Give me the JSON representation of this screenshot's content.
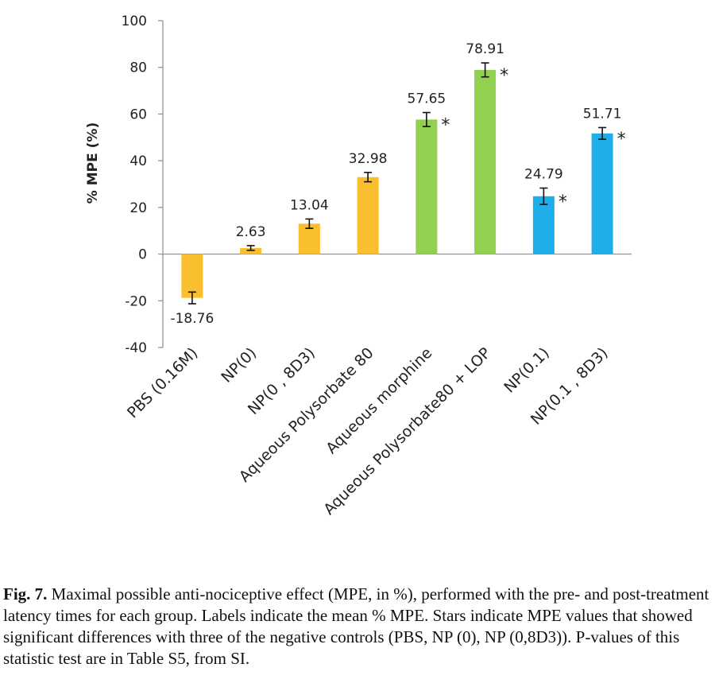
{
  "chart_data": {
    "type": "bar",
    "ylabel": "% MPE (%)",
    "ylim": [
      -40,
      100
    ],
    "yticks": [
      -40,
      -20,
      0,
      20,
      40,
      60,
      80,
      100
    ],
    "grid": false,
    "categories": [
      "PBS (0.16M)",
      "NP(0)",
      "NP(0 , 8D3)",
      "Aqueous Polysorbate 80",
      "Aqueous morphine",
      "Aqueous Polysorbate80 + LOP",
      "NP(0.1)",
      "NP(0.1 , 8D3)"
    ],
    "values": [
      -18.76,
      2.63,
      13.04,
      32.98,
      57.65,
      78.91,
      24.79,
      51.71
    ],
    "value_labels": [
      "-18.76",
      "2.63",
      "13.04",
      "32.98",
      "57.65",
      "78.91",
      "24.79",
      "51.71"
    ],
    "error": [
      2.5,
      1.0,
      2.0,
      2.0,
      3.0,
      3.0,
      3.5,
      2.5
    ],
    "significant": [
      false,
      false,
      false,
      false,
      true,
      true,
      true,
      true
    ],
    "star_text": "*",
    "bar_colors": [
      "#FABF2E",
      "#FABF2E",
      "#FABF2E",
      "#FABF2E",
      "#92D050",
      "#92D050",
      "#1EAFEA",
      "#1EAFEA"
    ]
  },
  "caption": {
    "label": "Fig. 7.",
    "text": " Maximal possible anti-nociceptive effect (MPE, in %), performed with the pre- and post-treatment latency times for each group. Labels indicate the mean % MPE. Stars indicate MPE values that showed significant differences with three of the negative controls (PBS, NP (0), NP (0,8D3)). P-values of this statistic test are in Table S5, from SI."
  }
}
